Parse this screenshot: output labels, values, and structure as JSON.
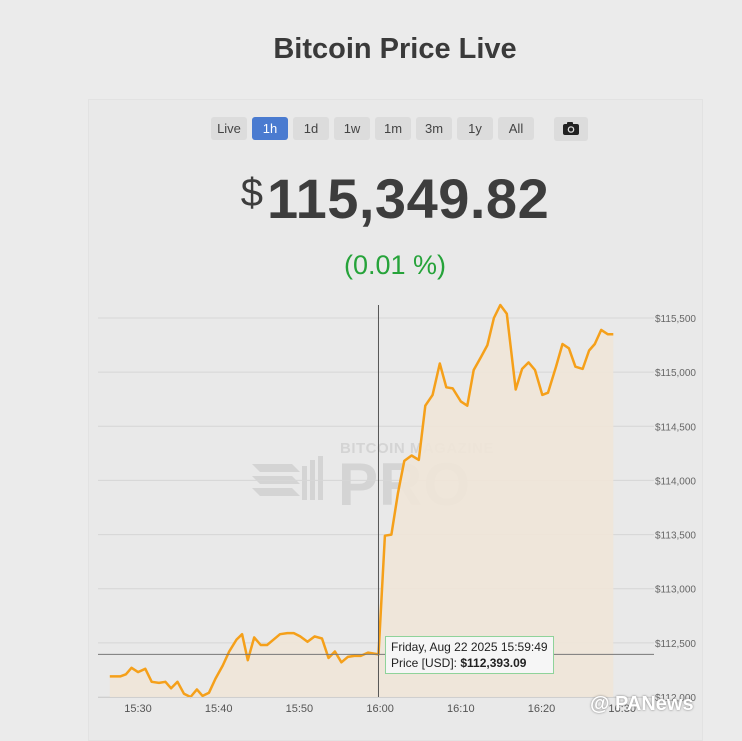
{
  "title": "Bitcoin Price Live",
  "range_buttons": [
    {
      "label": "Live",
      "active": false
    },
    {
      "label": "1h",
      "active": true
    },
    {
      "label": "1d",
      "active": false
    },
    {
      "label": "1w",
      "active": false
    },
    {
      "label": "1m",
      "active": false
    },
    {
      "label": "3m",
      "active": false
    },
    {
      "label": "1y",
      "active": false
    },
    {
      "label": "All",
      "active": false
    }
  ],
  "camera_icon": "camera-icon",
  "price": {
    "currency": "$",
    "value": "115,349.82"
  },
  "change": "(0.01 %)",
  "watermark": {
    "brand": "BITCOIN MAGAZINE",
    "name": "PRO"
  },
  "tooltip": {
    "date": "Friday, Aug 22 2025 15:59:49",
    "label": "Price [USD]:",
    "value": "$112,393.09"
  },
  "source_watermark": "@ PANews",
  "colors": {
    "line": "#f5a01a",
    "area": "#f0e6d8",
    "up": "#26a33a",
    "active": "#4a7bd0"
  },
  "chart_data": {
    "type": "line",
    "title": "",
    "xlabel": "",
    "ylabel": "",
    "x_ticks": [
      {
        "value": "15:30",
        "minute": 0
      },
      {
        "value": "15:40",
        "minute": 10
      },
      {
        "value": "15:50",
        "minute": 20
      },
      {
        "value": "16:00",
        "minute": 30
      },
      {
        "value": "16:10",
        "minute": 40
      },
      {
        "value": "16:20",
        "minute": 50
      },
      {
        "value": "16:30",
        "minute": 60
      }
    ],
    "y_ticks": [
      {
        "label": "$112,000",
        "value": 112000
      },
      {
        "label": "$112,500",
        "value": 112500
      },
      {
        "label": "$113,000",
        "value": 113000
      },
      {
        "label": "$113,500",
        "value": 113500
      },
      {
        "label": "$114,000",
        "value": 114000
      },
      {
        "label": "$114,500",
        "value": 114500
      },
      {
        "label": "$115,000",
        "value": 115000
      },
      {
        "label": "$115,500",
        "value": 115500
      }
    ],
    "ylim": [
      112000,
      115700
    ],
    "xlim": [
      -3.5,
      61.5
    ],
    "crosshair": {
      "minute": 29.8,
      "value": 112393.09
    },
    "series": [
      {
        "points": [
          [
            -3.5,
            112190
          ],
          [
            -2.2,
            112190
          ],
          [
            -1.5,
            112210
          ],
          [
            -0.8,
            112270
          ],
          [
            0,
            112230
          ],
          [
            0.9,
            112260
          ],
          [
            1.7,
            112140
          ],
          [
            2.6,
            112130
          ],
          [
            3.4,
            112140
          ],
          [
            4.1,
            112080
          ],
          [
            4.9,
            112140
          ],
          [
            5.7,
            112030
          ],
          [
            6.5,
            112000
          ],
          [
            7.3,
            112070
          ],
          [
            8,
            112010
          ],
          [
            8.8,
            112040
          ],
          [
            9.6,
            112170
          ],
          [
            10.5,
            112290
          ],
          [
            11.3,
            112420
          ],
          [
            12.2,
            112530
          ],
          [
            12.9,
            112580
          ],
          [
            13.6,
            112340
          ],
          [
            14.4,
            112550
          ],
          [
            15.2,
            112480
          ],
          [
            16,
            112480
          ],
          [
            16.8,
            112530
          ],
          [
            17.6,
            112580
          ],
          [
            18.5,
            112590
          ],
          [
            19.3,
            112590
          ],
          [
            20.1,
            112560
          ],
          [
            21,
            112510
          ],
          [
            21.9,
            112560
          ],
          [
            22.8,
            112540
          ],
          [
            23.6,
            112360
          ],
          [
            24.4,
            112420
          ],
          [
            25.2,
            112320
          ],
          [
            26,
            112370
          ],
          [
            26.8,
            112380
          ],
          [
            27.6,
            112380
          ],
          [
            28.5,
            112410
          ],
          [
            29.8,
            112393
          ],
          [
            30.6,
            113490
          ],
          [
            31.4,
            113500
          ],
          [
            32.2,
            113880
          ],
          [
            33,
            114180
          ],
          [
            33.9,
            114230
          ],
          [
            34.8,
            114190
          ],
          [
            35.6,
            114690
          ],
          [
            36.5,
            114790
          ],
          [
            37.4,
            115080
          ],
          [
            38.2,
            114860
          ],
          [
            39,
            114850
          ],
          [
            40,
            114730
          ],
          [
            40.8,
            114690
          ],
          [
            41.6,
            115020
          ],
          [
            42.5,
            115140
          ],
          [
            43.3,
            115250
          ],
          [
            44.1,
            115500
          ],
          [
            44.9,
            115620
          ],
          [
            45.7,
            115540
          ],
          [
            46.8,
            114840
          ],
          [
            47.6,
            115030
          ],
          [
            48.4,
            115090
          ],
          [
            49.2,
            115020
          ],
          [
            50.1,
            114790
          ],
          [
            50.8,
            114810
          ],
          [
            51.8,
            115050
          ],
          [
            52.6,
            115260
          ],
          [
            53.4,
            115220
          ],
          [
            54.2,
            115050
          ],
          [
            55.1,
            115030
          ],
          [
            55.9,
            115200
          ],
          [
            56.6,
            115260
          ],
          [
            57.4,
            115390
          ],
          [
            58.2,
            115350
          ],
          [
            58.9,
            115350
          ]
        ]
      }
    ]
  }
}
